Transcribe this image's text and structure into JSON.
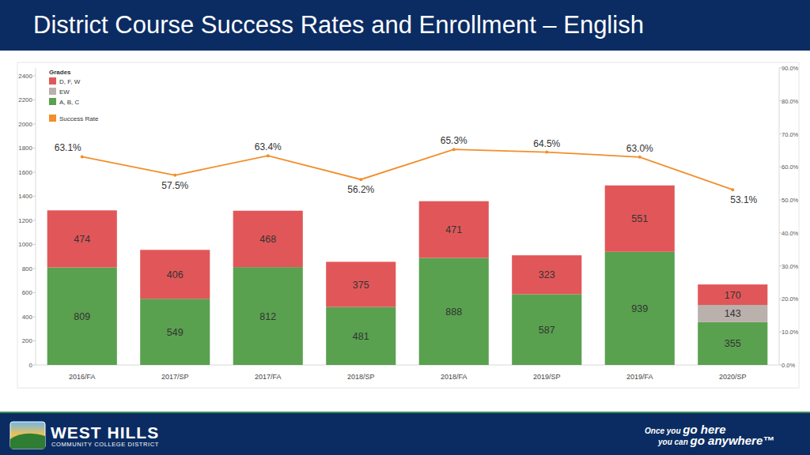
{
  "chart_data": {
    "type": "bar",
    "title": "District Course Success Rates and Enrollment – English",
    "legend_title": "Grades",
    "categories": [
      "2016/FA",
      "2017/SP",
      "2017/FA",
      "2018/SP",
      "2018/FA",
      "2019/SP",
      "2019/FA",
      "2020/SP"
    ],
    "series": [
      {
        "name": "A, B, C",
        "color": "#59a14f",
        "values": [
          809,
          549,
          812,
          481,
          888,
          587,
          939,
          355
        ]
      },
      {
        "name": "EW",
        "color": "#bab0ac",
        "values": [
          null,
          null,
          null,
          null,
          null,
          null,
          null,
          143
        ]
      },
      {
        "name": "D, F, W",
        "color": "#e15759",
        "values": [
          474,
          406,
          468,
          375,
          471,
          323,
          551,
          170
        ]
      },
      {
        "name": "Success Rate",
        "color": "#f28e2b",
        "type": "line",
        "axis": "y2",
        "marker": "circle",
        "values": [
          63.1,
          57.5,
          63.4,
          56.2,
          65.3,
          64.5,
          63.0,
          53.1
        ],
        "value_labels": [
          "63.1%",
          "57.5%",
          "63.4%",
          "56.2%",
          "65.3%",
          "64.5%",
          "63.0%",
          "53.1%"
        ]
      }
    ],
    "stacked": true,
    "data_labels": true,
    "grid": false,
    "legend": "upper left",
    "ylim": [
      0,
      2465
    ],
    "yticks": [
      0,
      200,
      400,
      600,
      800,
      1000,
      1200,
      1400,
      1600,
      1800,
      2000,
      2200,
      2400
    ],
    "y2lim": [
      0,
      90
    ],
    "y2ticks": [
      {
        "value": 0,
        "label": "0.0%"
      },
      {
        "value": 10,
        "label": "10.0%"
      },
      {
        "value": 20,
        "label": "20.0%"
      },
      {
        "value": 30,
        "label": "30.0%"
      },
      {
        "value": 40,
        "label": "40.0%"
      },
      {
        "value": 50,
        "label": "50.0%"
      },
      {
        "value": 60,
        "label": "60.0%"
      },
      {
        "value": 70,
        "label": "70.0%"
      },
      {
        "value": 80,
        "label": "80.0%"
      },
      {
        "value": 90,
        "label": "90.0%"
      }
    ]
  },
  "footer": {
    "logo_name": "WEST HILLS",
    "logo_subtitle": "COMMUNITY COLLEGE DISTRICT",
    "slogan": [
      "Once you ",
      "go here",
      "you can ",
      "go anywhere™"
    ]
  }
}
